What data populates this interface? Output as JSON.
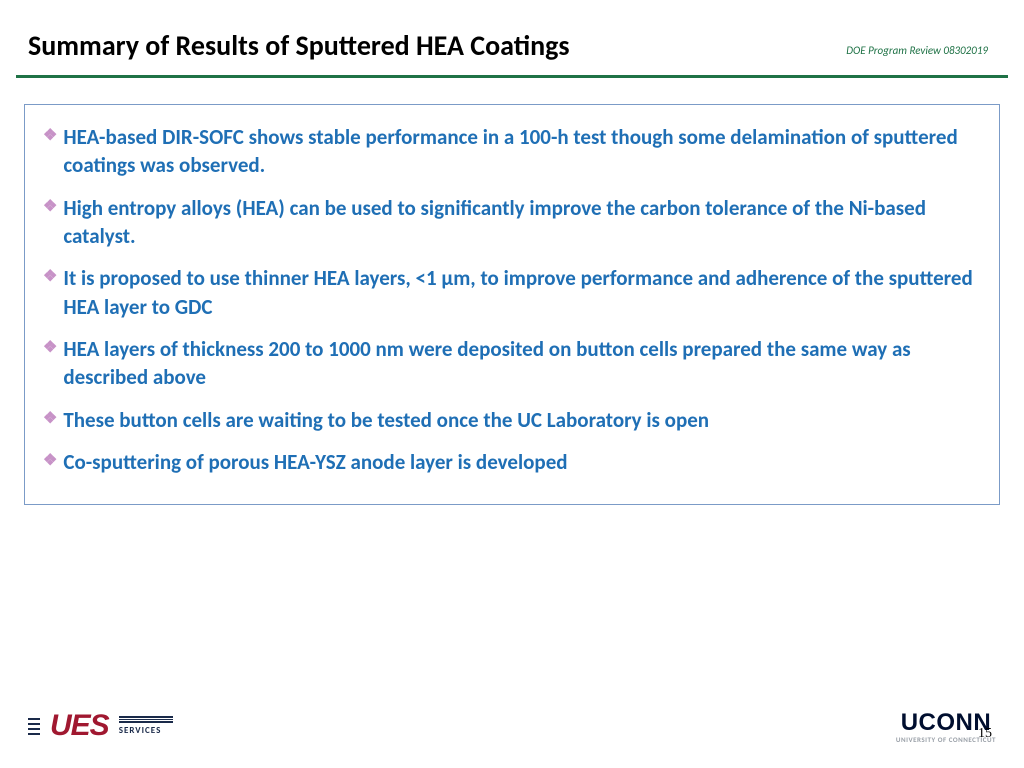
{
  "header": {
    "title": "Summary of Results of Sputtered HEA Coatings",
    "review_note": "DOE Program Review 08302019"
  },
  "bullets": [
    "HEA-based DIR-SOFC shows stable performance in a 100-h test though some delamination of sputtered coatings was observed.",
    "High entropy alloys (HEA) can be used to significantly improve the carbon tolerance of the Ni-based catalyst.",
    "It is proposed to use thinner HEA layers, <1 µm, to improve performance and adherence of the sputtered HEA layer to GDC",
    "HEA layers of thickness 200 to 1000 nm were deposited on button cells prepared the same way as described above",
    "These button cells are waiting to be tested once the UC Laboratory is open",
    "Co-sputtering of porous HEA-YSZ anode layer is developed"
  ],
  "footer": {
    "left_logo_main": "UES",
    "left_logo_sub": "SERVICES",
    "right_logo_main": "UCONN",
    "right_logo_sub": "UNIVERSITY OF CONNECTICUT",
    "page_number": "15"
  },
  "colors": {
    "title_color": "#000000",
    "divider_color": "#1f7246",
    "bullet_text_color": "#1f6fb5",
    "bullet_marker_color": "#c792c7",
    "box_border_color": "#7b9bc7",
    "ues_color": "#a01830",
    "uconn_color": "#000e2f"
  }
}
